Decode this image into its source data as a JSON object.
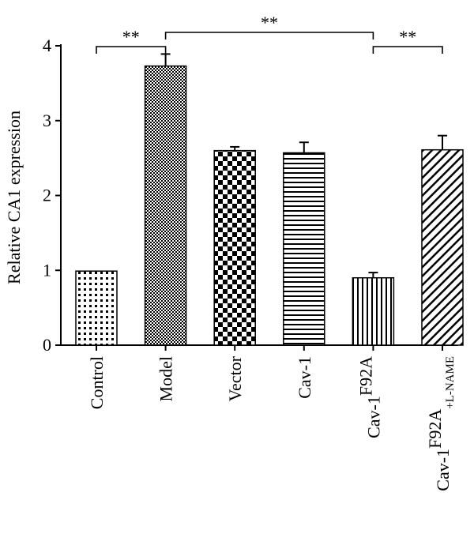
{
  "chart_data": {
    "type": "bar",
    "ylabel": "Relative CA1 expression",
    "xlabel": "",
    "ylim": [
      0,
      4
    ],
    "yticks": [
      0,
      1,
      2,
      3,
      4
    ],
    "categories": [
      {
        "main": "Control",
        "sup": "",
        "sub": ""
      },
      {
        "main": "Model",
        "sup": "",
        "sub": ""
      },
      {
        "main": "Vector",
        "sup": "",
        "sub": ""
      },
      {
        "main": "Cav-1",
        "sup": "",
        "sub": ""
      },
      {
        "main": "Cav-1",
        "sup": "F92A",
        "sub": ""
      },
      {
        "main": "Cav-1",
        "sup": "F92A",
        "sub": "+L-NAME"
      }
    ],
    "values": [
      0.99,
      3.73,
      2.6,
      2.57,
      0.9,
      2.61
    ],
    "errors": [
      0.0,
      0.16,
      0.05,
      0.14,
      0.07,
      0.19
    ],
    "patterns": [
      "dots",
      "checker-fine",
      "checker",
      "hlines",
      "vlines",
      "diagonal"
    ],
    "significance": [
      {
        "from": 0,
        "to": 1,
        "label": "**"
      },
      {
        "from": 1,
        "to": 4,
        "label": "**"
      },
      {
        "from": 4,
        "to": 5,
        "label": "**"
      }
    ]
  }
}
